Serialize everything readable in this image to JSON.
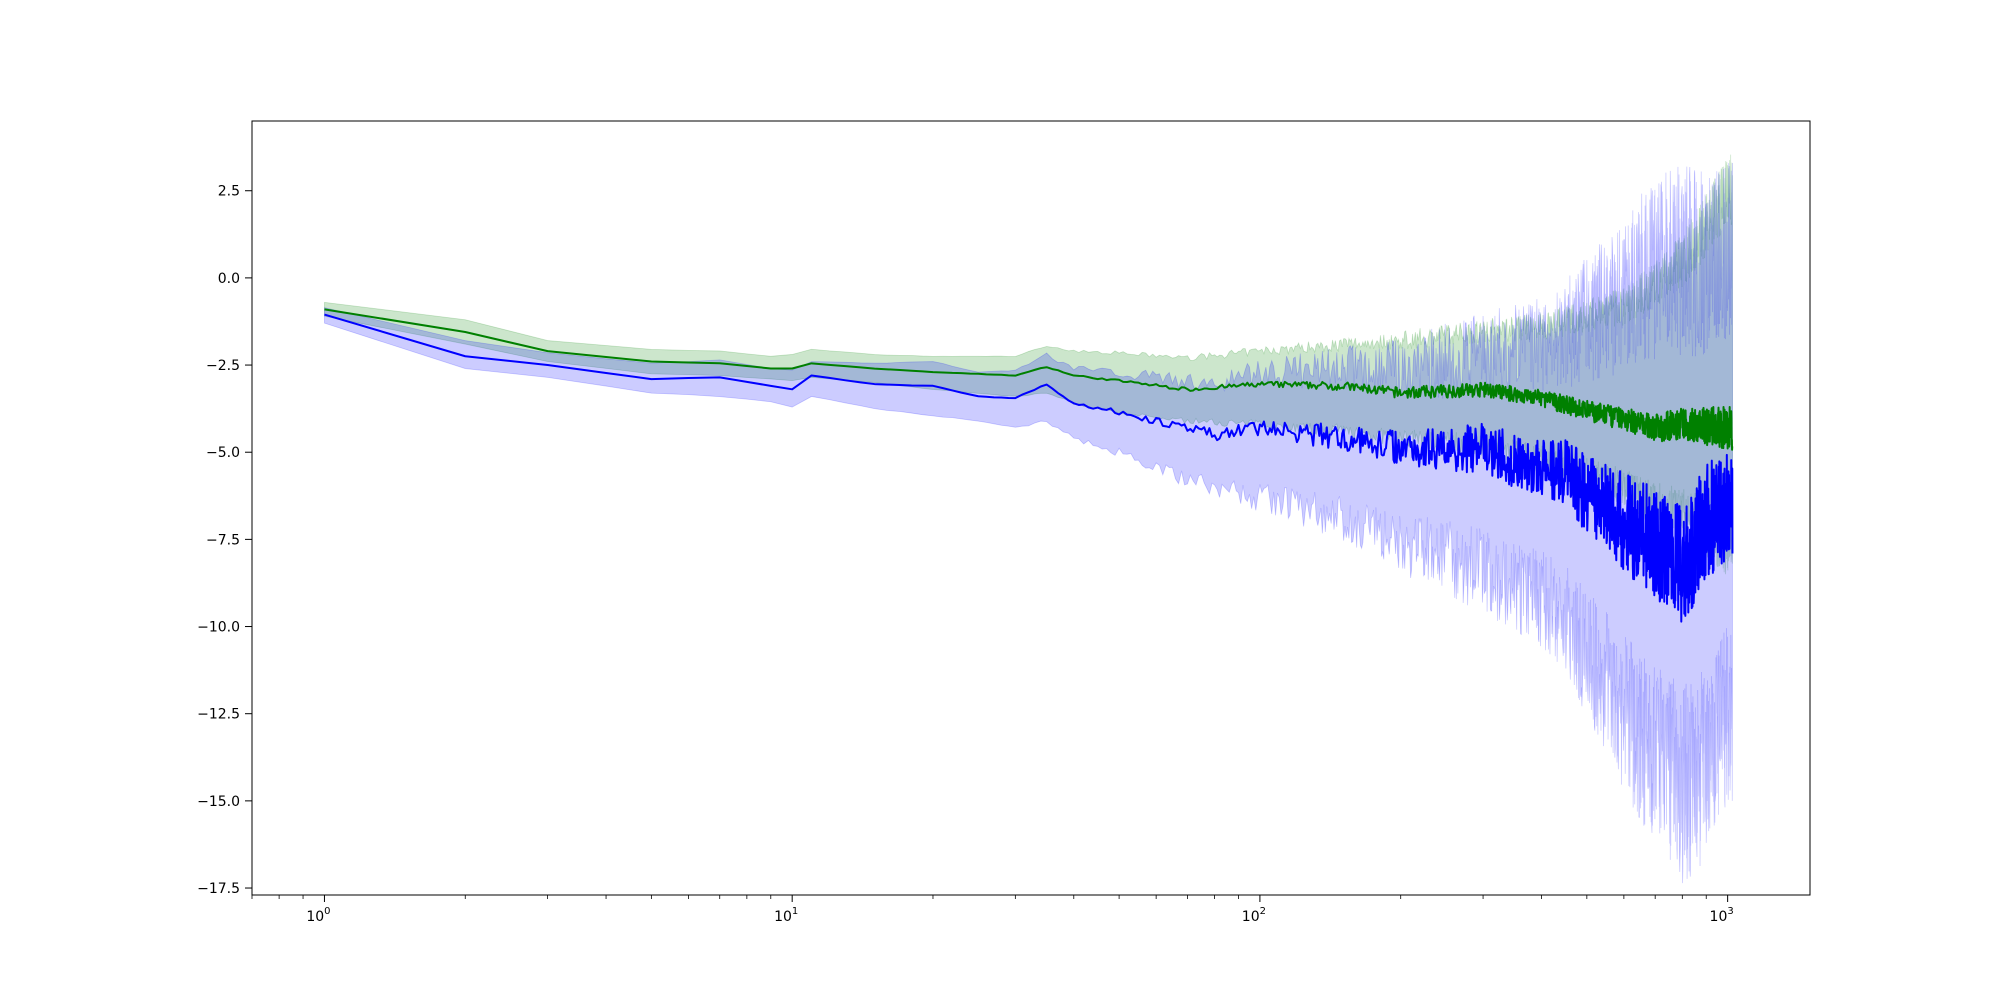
{
  "chart_data": {
    "type": "line",
    "title": "",
    "xlabel": "",
    "ylabel": "",
    "x_scale": "log",
    "xlim": [
      0.7,
      1500
    ],
    "ylim": [
      -17.7,
      4.5
    ],
    "x_ticks": [
      {
        "value": 1,
        "base": "10",
        "exp": "0"
      },
      {
        "value": 10,
        "base": "10",
        "exp": "1"
      },
      {
        "value": 100,
        "base": "10",
        "exp": "2"
      },
      {
        "value": 1000,
        "base": "10",
        "exp": "3"
      }
    ],
    "y_ticks": [
      {
        "value": 2.5,
        "label": "2.5"
      },
      {
        "value": 0,
        "label": "0.0"
      },
      {
        "value": -2.5,
        "label": "−2.5"
      },
      {
        "value": -5,
        "label": "−5.0"
      },
      {
        "value": -7.5,
        "label": "−7.5"
      },
      {
        "value": -10,
        "label": "−10.0"
      },
      {
        "value": -12.5,
        "label": "−12.5"
      },
      {
        "value": -15,
        "label": "−15.0"
      },
      {
        "value": -17.5,
        "label": "−17.5"
      }
    ],
    "grid": false,
    "legend": "none",
    "x_end": 1024,
    "series": [
      {
        "color": "#008000",
        "band_color": "#008000",
        "x": [
          1,
          2,
          3,
          5,
          7,
          9,
          10,
          11,
          15,
          20,
          30,
          35,
          40,
          50,
          70,
          100,
          150,
          200,
          300,
          400,
          500,
          600,
          700,
          800,
          900,
          1000
        ],
        "values": [
          -0.9,
          -1.55,
          -2.1,
          -2.4,
          -2.45,
          -2.6,
          -2.6,
          -2.45,
          -2.6,
          -2.7,
          -2.8,
          -2.55,
          -2.8,
          -2.95,
          -3.2,
          -3.05,
          -3.1,
          -3.3,
          -3.2,
          -3.45,
          -3.8,
          -4.05,
          -4.3,
          -4.2,
          -4.25,
          -4.3
        ],
        "lower": [
          -1.1,
          -1.9,
          -2.4,
          -2.75,
          -2.8,
          -2.9,
          -2.95,
          -2.85,
          -3.0,
          -3.2,
          -3.4,
          -3.3,
          -3.6,
          -3.9,
          -4.1,
          -4.2,
          -4.4,
          -4.6,
          -4.8,
          -5.2,
          -5.6,
          -6.0,
          -6.5,
          -6.8,
          -7.2,
          -7.5
        ],
        "upper": [
          -0.7,
          -1.2,
          -1.8,
          -2.05,
          -2.1,
          -2.25,
          -2.2,
          -2.05,
          -2.2,
          -2.25,
          -2.25,
          -1.95,
          -2.1,
          -2.15,
          -2.3,
          -2.1,
          -1.9,
          -1.8,
          -1.5,
          -1.4,
          -1.1,
          -0.8,
          -0.2,
          0.5,
          1.5,
          2.5
        ]
      },
      {
        "color": "#0000ff",
        "band_color": "#0000ff",
        "x": [
          1,
          2,
          3,
          5,
          7,
          9,
          10,
          11,
          15,
          20,
          25,
          30,
          35,
          40,
          50,
          60,
          70,
          80,
          100,
          150,
          200,
          300,
          400,
          450,
          500,
          550,
          600,
          700,
          800,
          900,
          1000
        ],
        "values": [
          -1.05,
          -2.25,
          -2.5,
          -2.9,
          -2.85,
          -3.1,
          -3.2,
          -2.8,
          -3.05,
          -3.1,
          -3.4,
          -3.45,
          -3.05,
          -3.6,
          -3.85,
          -4.1,
          -4.35,
          -4.5,
          -4.3,
          -4.6,
          -4.85,
          -4.9,
          -5.5,
          -5.6,
          -6.2,
          -6.5,
          -7.0,
          -7.6,
          -8.3,
          -7.0,
          -6.5
        ],
        "lower": [
          -1.3,
          -2.6,
          -2.85,
          -3.3,
          -3.4,
          -3.55,
          -3.7,
          -3.4,
          -3.75,
          -3.95,
          -4.1,
          -4.3,
          -4.1,
          -4.6,
          -5.0,
          -5.4,
          -5.8,
          -6.0,
          -6.3,
          -6.9,
          -7.6,
          -8.4,
          -9.2,
          -9.8,
          -10.8,
          -11.5,
          -12.5,
          -13.8,
          -14.5,
          -14.0,
          -12.5
        ],
        "upper": [
          -0.85,
          -1.8,
          -2.15,
          -2.45,
          -2.35,
          -2.6,
          -2.65,
          -2.4,
          -2.45,
          -2.4,
          -2.7,
          -2.65,
          -2.2,
          -2.6,
          -2.7,
          -2.85,
          -3.0,
          -3.0,
          -2.7,
          -2.6,
          -2.6,
          -2.2,
          -1.9,
          -1.6,
          -1.2,
          -0.8,
          -0.4,
          0.2,
          0.6,
          0.4,
          0.8
        ]
      }
    ]
  }
}
